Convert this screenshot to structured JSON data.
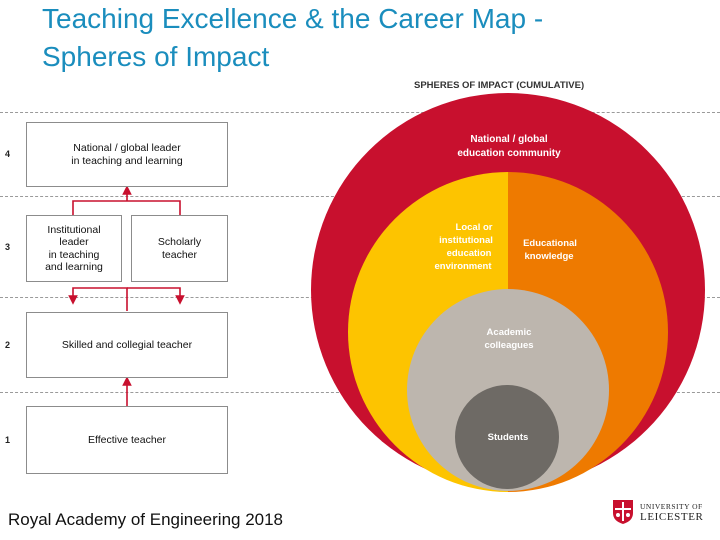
{
  "title": {
    "line1": "Teaching Excellence & the Career Map -",
    "line2": "Spheres of Impact"
  },
  "footer": "Royal Academy of Engineering 2018",
  "career_map": {
    "levels": [
      "4",
      "3",
      "2",
      "1"
    ],
    "boxes": {
      "national": "National / global leader\nin teaching and learning",
      "institutional": "Institutional\nleader\nin teaching\nand learning",
      "scholarly": "Scholarly\nteacher",
      "skilled": "Skilled and collegial teacher",
      "effective": "Effective teacher"
    }
  },
  "spheres": {
    "heading": "SPHERES OF IMPACT (CUMULATIVE)",
    "national": [
      "National / global",
      "education community"
    ],
    "local": [
      "Local or",
      "institutional",
      "education",
      "environment"
    ],
    "educational": [
      "Educational",
      "knowledge"
    ],
    "academic": [
      "Academic",
      "colleagues"
    ],
    "students": "Students",
    "colors": {
      "red": "#c8102e",
      "yellow": "#fdc400",
      "orange": "#ee7a00",
      "grey": "#bdb6ae",
      "dark": "#6e6a65"
    }
  },
  "logo": {
    "line1": "UNIVERSITY OF",
    "line2": "LEICESTER",
    "icon": "university-shield-icon"
  }
}
